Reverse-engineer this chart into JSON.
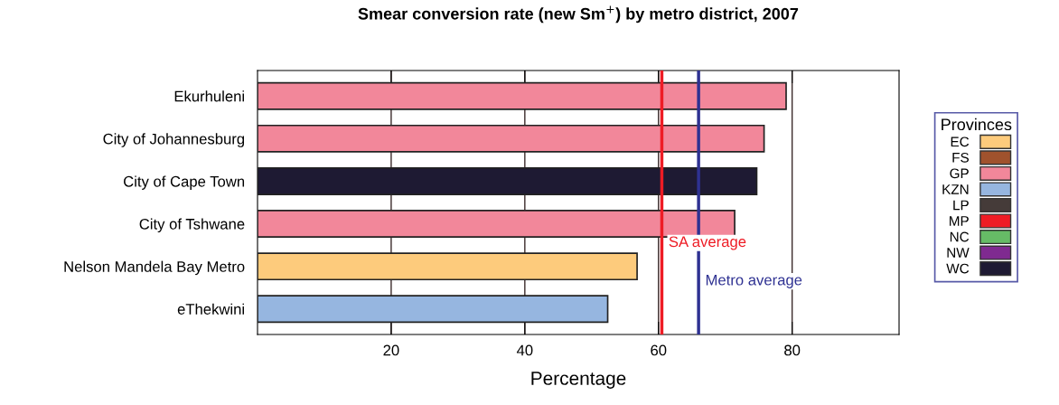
{
  "chart_data": {
    "type": "bar",
    "orientation": "horizontal",
    "title": "Smear conversion rate (new Sm$^{+}$) by metro district, 2007",
    "xlabel": "Percentage",
    "legend_title": "Provinces",
    "legend": "right",
    "categories": [
      "Ekurhuleni",
      "City of Johannesburg",
      "City of Cape Town",
      "City of Tshwane",
      "Nelson Mandela Bay Metro",
      "eThekwini"
    ],
    "series": [
      {
        "name": "EC",
        "color": "#fdcb7c",
        "values": [
          null,
          null,
          null,
          null,
          56.8,
          null
        ]
      },
      {
        "name": "FS",
        "color": "#a0522d",
        "values": [
          null,
          null,
          null,
          null,
          null,
          null
        ]
      },
      {
        "name": "GP",
        "color": "#f2879a",
        "values": [
          79.1,
          75.8,
          null,
          71.4,
          null,
          null
        ]
      },
      {
        "name": "KZN",
        "color": "#96b6e0",
        "values": [
          null,
          null,
          null,
          null,
          null,
          52.4
        ]
      },
      {
        "name": "LP",
        "color": "#453b39",
        "values": [
          null,
          null,
          null,
          null,
          null,
          null
        ]
      },
      {
        "name": "MP",
        "color": "#ee1c25",
        "values": [
          null,
          null,
          null,
          null,
          null,
          null
        ]
      },
      {
        "name": "NC",
        "color": "#66bb66",
        "values": [
          null,
          null,
          null,
          null,
          null,
          null
        ]
      },
      {
        "name": "NW",
        "color": "#7f2a90",
        "values": [
          null,
          null,
          null,
          null,
          null,
          null
        ]
      },
      {
        "name": "WC",
        "color": "#1e1a33",
        "values": [
          null,
          null,
          74.7,
          null,
          null,
          null
        ]
      }
    ],
    "xlim": [
      0,
      96
    ],
    "xticks": [
      20,
      40,
      60,
      80
    ],
    "grid": "x",
    "ref_lines": [
      {
        "axis": "x",
        "value": 60.5,
        "label": "SA average",
        "color": "#ee1c25"
      },
      {
        "axis": "x",
        "value": 66.0,
        "label": "Metro average",
        "color": "#2e3192"
      }
    ]
  }
}
